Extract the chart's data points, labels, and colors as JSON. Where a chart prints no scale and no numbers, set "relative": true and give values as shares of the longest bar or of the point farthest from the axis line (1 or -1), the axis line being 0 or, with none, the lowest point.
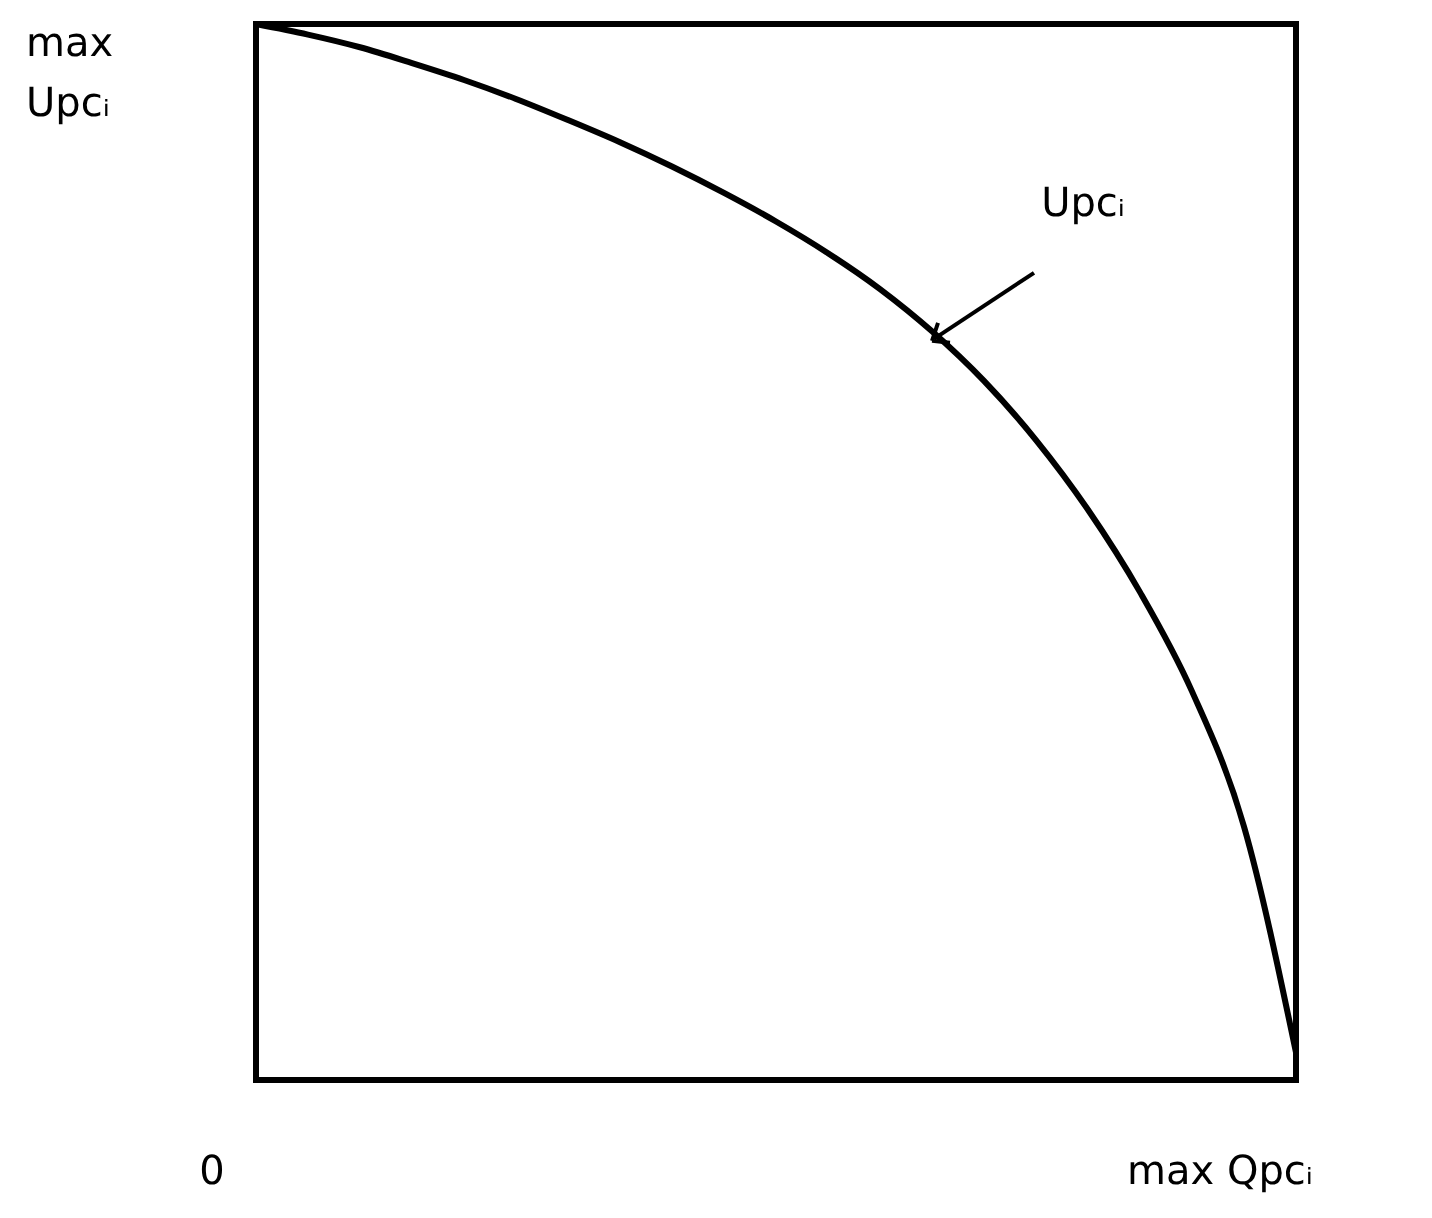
{
  "chart_data": {
    "type": "line",
    "relative": true,
    "categories": [
      null,
      null,
      null,
      null,
      null,
      null,
      null,
      null,
      null,
      null,
      null,
      null,
      null,
      null,
      null,
      null,
      null,
      null,
      null,
      null,
      null
    ],
    "series": [
      {
        "color": "#000000",
        "values": [
          1.0,
          0.99,
          0.978,
          0.963,
          0.947,
          0.929,
          0.909,
          0.888,
          0.865,
          0.84,
          0.813,
          0.783,
          0.749,
          0.709,
          0.662,
          0.606,
          0.54,
          0.462,
          0.368,
          0.24,
          0.026
        ]
      }
    ],
    "annotations": [
      "max Upcᵢ",
      "0",
      "max Qpcᵢ",
      "Upcᵢ"
    ],
    "grid": false,
    "marker": "none",
    "line_style": "solid"
  }
}
